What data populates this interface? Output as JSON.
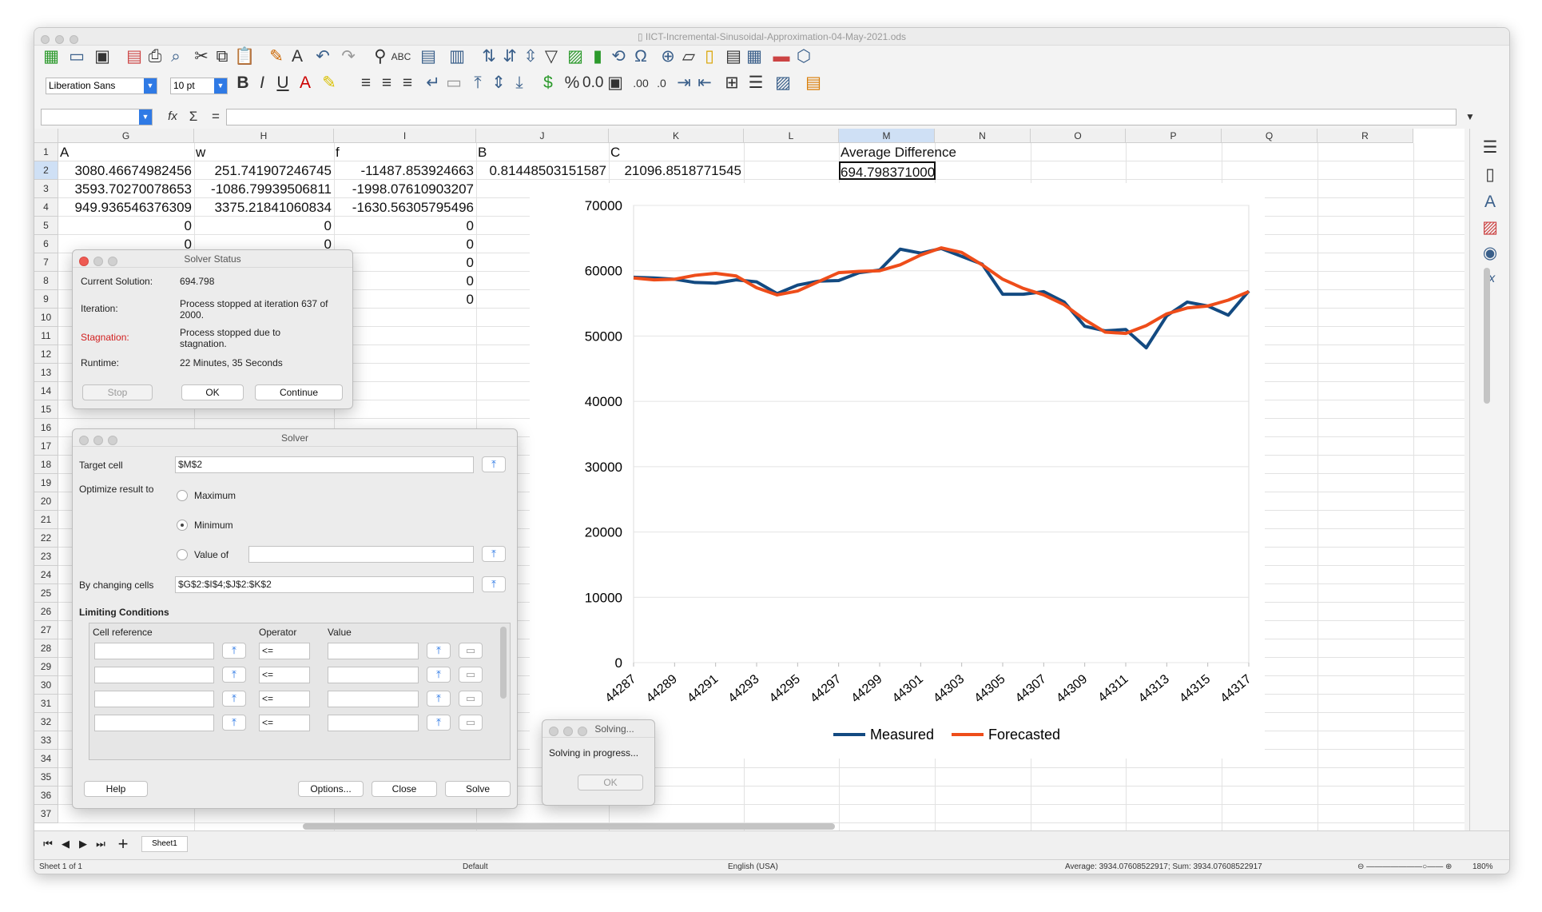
{
  "window": {
    "title": "IICT-Incremental-Sinusoidal-Approximation-04-May-2021.ods"
  },
  "toolbar": {
    "font_name": "Liberation Sans",
    "font_size": "10 pt"
  },
  "columns": [
    "G",
    "H",
    "I",
    "J",
    "K",
    "L",
    "M",
    "N",
    "O",
    "P",
    "Q",
    "R"
  ],
  "rows": [
    "1",
    "2",
    "3",
    "4",
    "5",
    "6",
    "7",
    "8",
    "9",
    "10",
    "11",
    "12",
    "13",
    "14",
    "15",
    "16",
    "17",
    "18",
    "19",
    "20",
    "21",
    "22",
    "23",
    "24",
    "25",
    "26",
    "27",
    "28",
    "29",
    "30",
    "31",
    "32",
    "33",
    "34",
    "35",
    "36",
    "37"
  ],
  "cells": {
    "g1": "A",
    "h1": "w",
    "i1": "f",
    "j1": "B",
    "k1": "C",
    "m1": "Average Difference",
    "g2": "3080.46674982456",
    "h2": "251.741907246745",
    "i2": "-11487.853924663",
    "j2": "0.81448503151587",
    "k2": "21096.8518771545",
    "m2": "694.7983710003",
    "g3": "3593.70270078653",
    "h3": "-1086.79939506811",
    "i3": "-1998.07610903207",
    "g4": "949.936546376309",
    "h4": "3375.21841060834",
    "i4": "-1630.56305795496",
    "g5": "0",
    "h5": "0",
    "i5": "0",
    "g6": "0",
    "h6": "0",
    "i6": "0",
    "i7": "0",
    "i8": "0",
    "i9": "0"
  },
  "solver_status": {
    "title": "Solver Status",
    "current_solution_label": "Current Solution:",
    "current_solution": "694.798",
    "iteration_label": "Iteration:",
    "iteration": "Process stopped at iteration 637 of 2000.",
    "stagnation_label": "Stagnation:",
    "stagnation": "Process stopped due to stagnation.",
    "runtime_label": "Runtime:",
    "runtime": "22 Minutes, 35 Seconds",
    "stop": "Stop",
    "ok": "OK",
    "continue": "Continue"
  },
  "solver": {
    "title": "Solver",
    "target_cell_label": "Target cell",
    "target_cell": "$M$2",
    "optimize_label": "Optimize result to",
    "maximum": "Maximum",
    "minimum": "Minimum",
    "value_of": "Value of",
    "changing_label": "By changing cells",
    "changing": "$G$2:$I$4;$J$2:$K$2",
    "limiting": "Limiting Conditions",
    "cell_ref": "Cell reference",
    "operator": "Operator",
    "value": "Value",
    "op": "<=",
    "help": "Help",
    "options": "Options...",
    "close": "Close",
    "solve": "Solve"
  },
  "solving": {
    "title": "Solving...",
    "message": "Solving in progress...",
    "ok": "OK"
  },
  "tabs": {
    "sheet": "Sheet1"
  },
  "statusbar": {
    "sheet": "Sheet 1 of 1",
    "style": "Default",
    "lang": "English (USA)",
    "sum": "Average: 3934.07608522917; Sum: 3934.07608522917",
    "zoom": "180%"
  },
  "chart_data": {
    "type": "line",
    "x": [
      44287,
      44288,
      44289,
      44290,
      44291,
      44292,
      44293,
      44294,
      44295,
      44296,
      44297,
      44298,
      44299,
      44300,
      44301,
      44302,
      44303,
      44304,
      44305,
      44306,
      44307,
      44308,
      44309,
      44310,
      44311,
      44312,
      44313,
      44314,
      44315,
      44316,
      44317
    ],
    "xticks": [
      "44287",
      "44289",
      "44291",
      "44293",
      "44295",
      "44297",
      "44299",
      "44301",
      "44303",
      "44305",
      "44307",
      "44309",
      "44311",
      "44313",
      "44315",
      "44317"
    ],
    "yticks": [
      "0",
      "10000",
      "20000",
      "30000",
      "40000",
      "50000",
      "60000",
      "70000"
    ],
    "ylim": [
      0,
      70000
    ],
    "series": [
      {
        "name": "Measured",
        "color": "#134a81",
        "values": [
          59000,
          58900,
          58700,
          58200,
          58100,
          58600,
          58300,
          56500,
          57800,
          58400,
          58500,
          59700,
          60100,
          63300,
          62700,
          63400,
          62200,
          61000,
          56400,
          56400,
          56800,
          55200,
          51500,
          50800,
          51000,
          48200,
          53100,
          55200,
          54600,
          53200,
          56900
        ]
      },
      {
        "name": "Forecasted",
        "color": "#ee4d1a",
        "values": [
          58900,
          58600,
          58700,
          59300,
          59600,
          59200,
          57400,
          56300,
          56900,
          58300,
          59700,
          59900,
          60000,
          60900,
          62400,
          63500,
          62800,
          60900,
          58700,
          57300,
          56300,
          54800,
          52500,
          50600,
          50400,
          51600,
          53400,
          54300,
          54600,
          55500,
          56800
        ]
      }
    ]
  }
}
